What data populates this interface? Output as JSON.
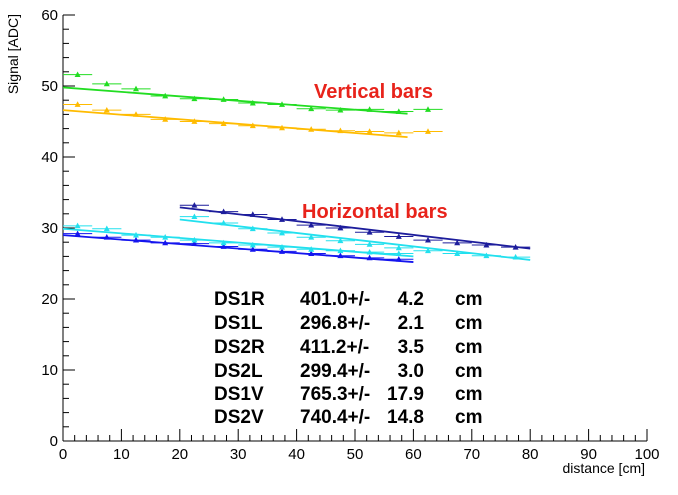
{
  "chart_data": {
    "type": "scatter",
    "title": "",
    "xlabel": "distance [cm]",
    "ylabel": "Signal [ADC]",
    "xlim": [
      0,
      100
    ],
    "ylim": [
      0,
      60
    ],
    "x_ticks": [
      "0",
      "10",
      "20",
      "30",
      "40",
      "50",
      "60",
      "70",
      "80",
      "90",
      "100"
    ],
    "y_ticks": [
      "0",
      "10",
      "20",
      "30",
      "40",
      "50",
      "60"
    ],
    "grid": false,
    "annotations": {
      "vertical": "Vertical bars",
      "horizontal": "Horizontal bars"
    },
    "series": [
      {
        "name": "green",
        "color": "#22dd22",
        "x": [
          2.5,
          7.5,
          12.5,
          17.5,
          22.5,
          27.5,
          32.5,
          37.5,
          42.5,
          47.5,
          52.5,
          57.5,
          62.5
        ],
        "y": [
          51.6,
          50.3,
          49.6,
          48.6,
          48.2,
          48.1,
          47.6,
          47.4,
          46.8,
          46.6,
          46.7,
          46.4,
          46.7
        ],
        "fit": [
          [
            0,
            49.8
          ],
          [
            59,
            46.1
          ]
        ]
      },
      {
        "name": "yellow",
        "color": "#ffbb00",
        "x": [
          2.5,
          7.5,
          12.5,
          17.5,
          22.5,
          27.5,
          32.5,
          37.5,
          42.5,
          47.5,
          52.5,
          57.5,
          62.5
        ],
        "y": [
          47.4,
          46.6,
          46.0,
          45.3,
          45.0,
          44.7,
          44.4,
          44.1,
          43.9,
          43.7,
          43.6,
          43.4,
          43.6
        ],
        "fit": [
          [
            0,
            46.6
          ],
          [
            59,
            42.8
          ]
        ]
      },
      {
        "name": "navy",
        "color": "#1d1d9c",
        "x": [
          22.5,
          27.5,
          32.5,
          37.5,
          42.5,
          47.5,
          52.5,
          57.5,
          62.5,
          67.5,
          72.5,
          77.5
        ],
        "y": [
          33.2,
          32.3,
          31.9,
          31.2,
          30.4,
          30.0,
          29.4,
          28.8,
          28.3,
          27.9,
          27.6,
          27.3
        ],
        "fit": [
          [
            20,
            32.9
          ],
          [
            80,
            27.1
          ]
        ]
      },
      {
        "name": "blue",
        "color": "#1515ee",
        "x": [
          2.5,
          7.5,
          12.5,
          17.5,
          22.5,
          27.5,
          32.5,
          37.5,
          42.5,
          47.5,
          52.5,
          57.5
        ],
        "y": [
          29.2,
          28.7,
          28.3,
          27.9,
          27.8,
          27.4,
          27.0,
          26.7,
          26.4,
          26.1,
          25.8,
          25.6
        ],
        "fit": [
          [
            0,
            29.0
          ],
          [
            60,
            25.2
          ]
        ]
      },
      {
        "name": "cyan-top",
        "color": "#22e0ee",
        "x": [
          2.5,
          7.5,
          12.5,
          17.5,
          22.5,
          27.5,
          32.5,
          37.5,
          42.5,
          47.5,
          52.5,
          57.5
        ],
        "y": [
          30.3,
          29.9,
          29.0,
          28.7,
          28.3,
          27.9,
          27.6,
          27.3,
          27.0,
          26.8,
          26.6,
          26.4
        ],
        "fit": [
          [
            0,
            29.9
          ],
          [
            60,
            26.0
          ]
        ]
      },
      {
        "name": "cyan-bottom",
        "color": "#22e0ee",
        "x": [
          22.5,
          27.5,
          32.5,
          37.5,
          42.5,
          47.5,
          52.5,
          57.5,
          62.5,
          67.5,
          72.5,
          77.5
        ],
        "y": [
          31.6,
          30.7,
          29.9,
          29.3,
          28.7,
          28.2,
          27.7,
          27.2,
          26.8,
          26.4,
          26.1,
          25.9
        ],
        "fit": [
          [
            20,
            31.2
          ],
          [
            80,
            25.5
          ]
        ]
      }
    ],
    "fit_results": [
      {
        "label": "DS1R",
        "value": "401.0+/-",
        "error": "4.2",
        "unit": "cm"
      },
      {
        "label": "DS1L",
        "value": "296.8+/-",
        "error": "2.1",
        "unit": "cm"
      },
      {
        "label": "DS2R",
        "value": "411.2+/-",
        "error": "3.5",
        "unit": "cm"
      },
      {
        "label": "DS2L",
        "value": "299.4+/-",
        "error": "3.0",
        "unit": "cm"
      },
      {
        "label": "DS1V",
        "value": "765.3+/-",
        "error": "17.9",
        "unit": "cm"
      },
      {
        "label": "DS2V",
        "value": "740.4+/-",
        "error": "14.8",
        "unit": "cm"
      }
    ]
  }
}
